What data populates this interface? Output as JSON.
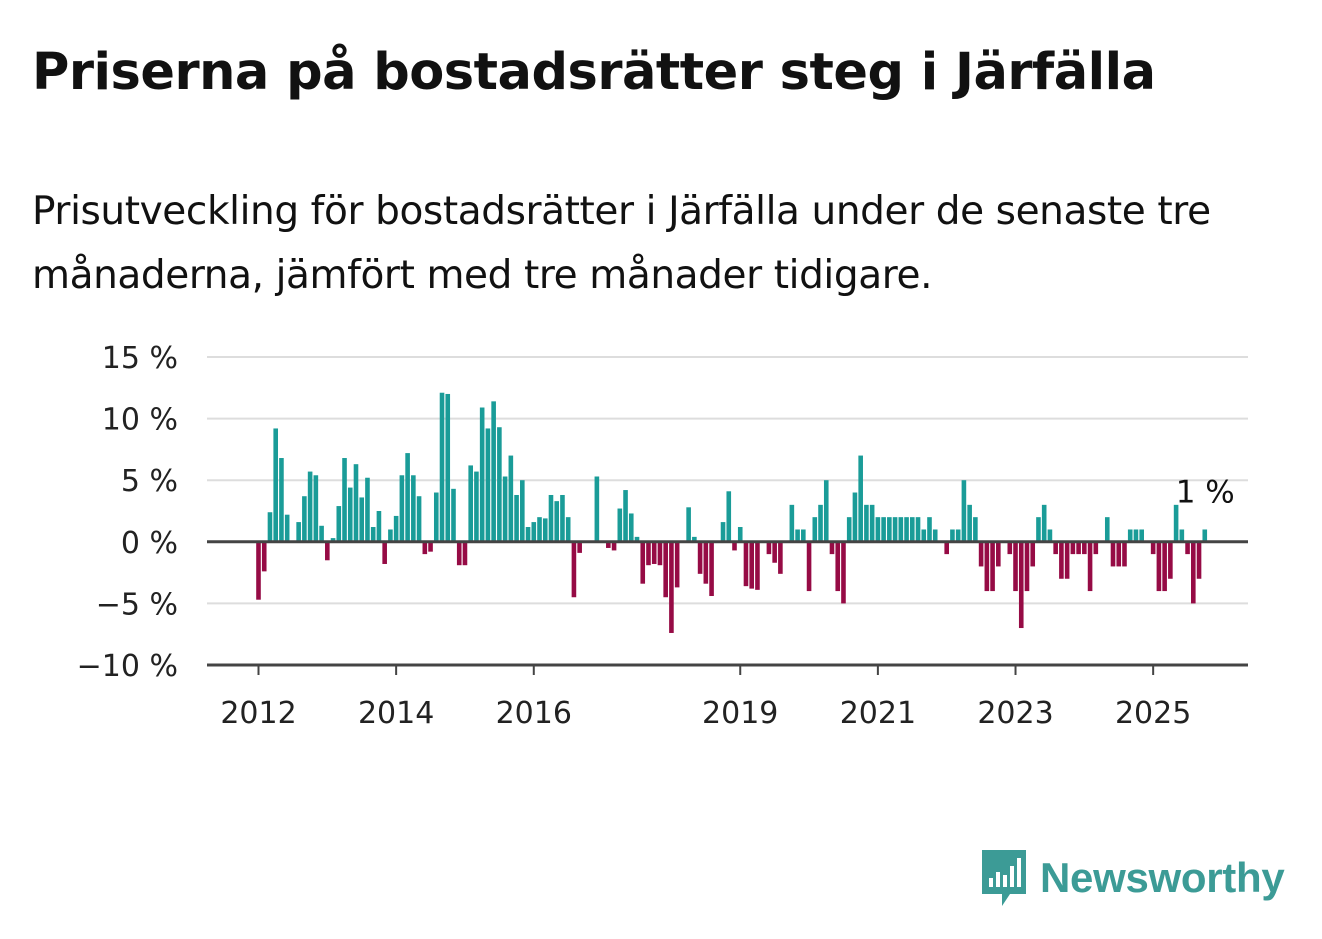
{
  "title": "Priserna på bostadsrätter steg i Järfälla",
  "subtitle": "Prisutveckling för bostadsrätter i Järfälla under de senaste tre månaderna, jämfört med tre månader tidigare.",
  "brand": "Newsworthy",
  "colors": {
    "positive": "#1a9c98",
    "negative": "#960b45",
    "brand": "#3c9b96",
    "grid": "#dddddd",
    "axis": "#444444"
  },
  "chart_data": {
    "type": "bar",
    "title": "Priserna på bostadsrätter steg i Järfälla",
    "ylim": [
      -10,
      15
    ],
    "y_ticks": [
      15,
      10,
      5,
      0,
      -5,
      -10
    ],
    "y_tick_labels": [
      "15 %",
      "10 %",
      "5 %",
      "0 %",
      "−5 %",
      "−10 %"
    ],
    "x_tick_labels": [
      "2012",
      "2014",
      "2016",
      "2019",
      "2021",
      "2023",
      "2025"
    ],
    "x_tick_months": [
      "2012-01",
      "2014-01",
      "2016-01",
      "2019-01",
      "2021-01",
      "2023-01",
      "2025-01"
    ],
    "grid": true,
    "end_label": "1 %",
    "start_month": "2012-01",
    "unit": "%",
    "values": [
      -4.7,
      -2.4,
      2.4,
      9.2,
      6.8,
      2.2,
      null,
      1.6,
      3.7,
      5.7,
      5.4,
      1.3,
      -1.5,
      0.3,
      2.9,
      6.8,
      4.4,
      6.3,
      3.6,
      5.2,
      1.2,
      2.5,
      -1.8,
      1.0,
      2.1,
      5.4,
      7.2,
      5.4,
      3.7,
      -1.0,
      -0.8,
      4.0,
      12.1,
      12.0,
      4.3,
      -1.9,
      -1.9,
      6.2,
      5.7,
      10.9,
      9.2,
      11.4,
      9.3,
      5.3,
      7.0,
      3.8,
      5.0,
      1.2,
      1.6,
      2.0,
      1.9,
      3.8,
      3.3,
      3.8,
      2.0,
      -4.5,
      -0.9,
      null,
      null,
      5.3,
      null,
      -0.5,
      -0.7,
      2.7,
      4.2,
      2.3,
      0.4,
      -3.4,
      -1.9,
      -1.8,
      -1.9,
      -4.5,
      -7.4,
      -3.7,
      null,
      2.8,
      0.4,
      -2.6,
      -3.4,
      -4.4,
      null,
      1.6,
      4.1,
      -0.7,
      1.2,
      -3.6,
      -3.8,
      -3.9,
      null,
      -1.0,
      -1.7,
      -2.6,
      null,
      3.0,
      1.0,
      1.0,
      -4.0,
      2.0,
      3.0,
      5.0,
      -1.0,
      -4.0,
      -5.0,
      2.0,
      4.0,
      7.0,
      3.0,
      3.0,
      2.0,
      2.0,
      2.0,
      2.0,
      2.0,
      2.0,
      2.0,
      2.0,
      1.0,
      2.0,
      1.0,
      null,
      -1.0,
      1.0,
      1.0,
      5.0,
      3.0,
      2.0,
      -2.0,
      -4.0,
      -4.0,
      -2.0,
      null,
      -1.0,
      -4.0,
      -7.0,
      -4.0,
      -2.0,
      2.0,
      3.0,
      1.0,
      -1.0,
      -3.0,
      -3.0,
      -1.0,
      -1.0,
      -1.0,
      -4.0,
      -1.0,
      null,
      2.0,
      -2.0,
      -2.0,
      -2.0,
      1.0,
      1.0,
      1.0,
      null,
      -1.0,
      -4.0,
      -4.0,
      -3.0,
      3.0,
      1.0,
      -1.0,
      -5.0,
      -3.0,
      1.0
    ]
  }
}
